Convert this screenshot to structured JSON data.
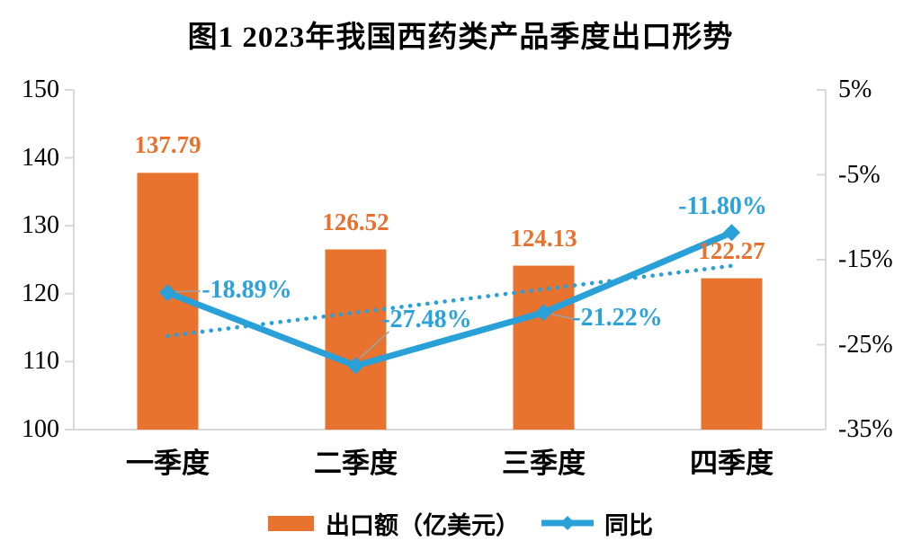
{
  "chart_data": {
    "type": "bar+line combo",
    "title": "图1 2023年我国西药类产品季度出口形势",
    "categories": [
      "一季度",
      "二季度",
      "三季度",
      "四季度"
    ],
    "series": [
      {
        "name": "出口额（亿美元）",
        "type": "bar",
        "color": "#E7732F",
        "axis": "left",
        "values": [
          137.79,
          126.52,
          124.13,
          122.27
        ],
        "labels": [
          "137.79",
          "126.52",
          "124.13",
          "122.27"
        ]
      },
      {
        "name": "同比",
        "type": "line",
        "color": "#29A0D8",
        "marker": "diamond",
        "axis": "right",
        "values": [
          -18.89,
          -27.48,
          -21.22,
          -11.8
        ],
        "labels": [
          "-18.89%",
          "-27.48%",
          "-21.22%",
          "-11.80%"
        ]
      }
    ],
    "trendline": {
      "of_series": "同比",
      "kind": "linear",
      "style": "dotted",
      "color": "#29A0D8"
    },
    "left_axis": {
      "ticks": [
        "150",
        "140",
        "130",
        "120",
        "110",
        "100"
      ],
      "min": 100,
      "max": 150
    },
    "right_axis": {
      "ticks": [
        "5%",
        "-5%",
        "-15%",
        "-25%",
        "-35%"
      ],
      "min": -35,
      "max": 5
    },
    "legend_position": "bottom",
    "grid": "off",
    "colors": {
      "bar": "#E7732F",
      "bar_label": "#E7712D",
      "line": "#29A0D8",
      "line_label": "#2BA2DC",
      "axis": "#D9D9D9",
      "callout": "#A0A0A0"
    }
  }
}
